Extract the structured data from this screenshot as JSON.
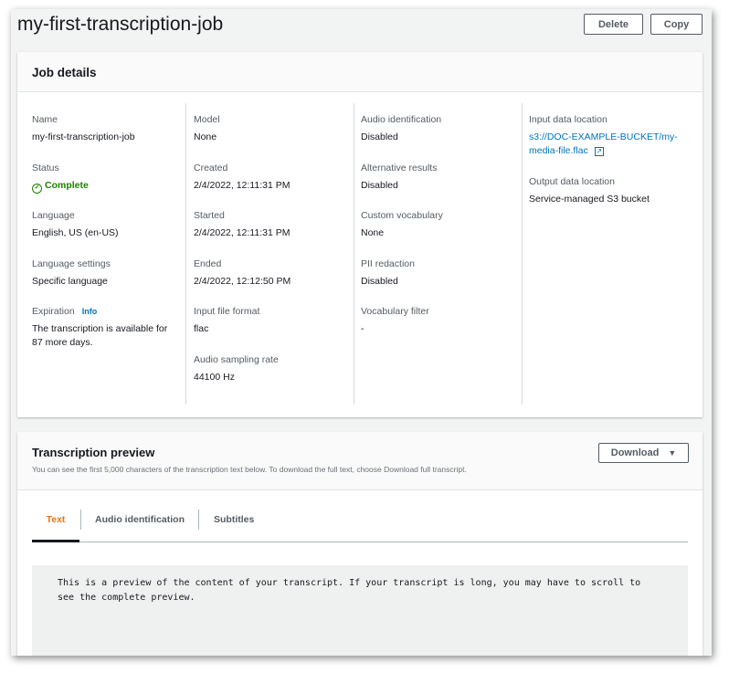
{
  "page": {
    "title": "my-first-transcription-job",
    "delete_label": "Delete",
    "copy_label": "Copy"
  },
  "job_details": {
    "heading": "Job details",
    "info_label": "Info",
    "col1": [
      {
        "label": "Name",
        "value": "my-first-transcription-job"
      },
      {
        "label": "Status",
        "value": "Complete"
      },
      {
        "label": "Language",
        "value": "English, US (en-US)"
      },
      {
        "label": "Language settings",
        "value": "Specific language"
      },
      {
        "label": "Expiration",
        "value": "The transcription is available for 87 more days."
      }
    ],
    "col2": [
      {
        "label": "Model",
        "value": "None"
      },
      {
        "label": "Created",
        "value": "2/4/2022, 12:11:31 PM"
      },
      {
        "label": "Started",
        "value": "2/4/2022, 12:11:31 PM"
      },
      {
        "label": "Ended",
        "value": "2/4/2022, 12:12:50 PM"
      },
      {
        "label": "Input file format",
        "value": "flac"
      },
      {
        "label": "Audio sampling rate",
        "value": "44100 Hz"
      }
    ],
    "col3": [
      {
        "label": "Audio identification",
        "value": "Disabled"
      },
      {
        "label": "Alternative results",
        "value": "Disabled"
      },
      {
        "label": "Custom vocabulary",
        "value": "None"
      },
      {
        "label": "PII redaction",
        "value": "Disabled"
      },
      {
        "label": "Vocabulary filter",
        "value": "-"
      }
    ],
    "col4": [
      {
        "label": "Input data location",
        "value": "s3://DOC-EXAMPLE-BUCKET/my-media-file.flac"
      },
      {
        "label": "Output data location",
        "value": "Service-managed S3 bucket"
      }
    ]
  },
  "preview": {
    "heading": "Transcription preview",
    "subtitle": "You can see the first 5,000 characters of the transcription text below. To download the full text, choose Download full transcript.",
    "download_label": "Download",
    "tabs": [
      {
        "label": "Text",
        "active": true
      },
      {
        "label": "Audio identification"
      },
      {
        "label": "Subtitles"
      }
    ],
    "text": "This is a preview of the content of your transcript. If your transcript is long, you may have to scroll to see the complete preview."
  },
  "colors": {
    "accent": "#ec7211",
    "link": "#0073bb",
    "success": "#1d8102"
  }
}
